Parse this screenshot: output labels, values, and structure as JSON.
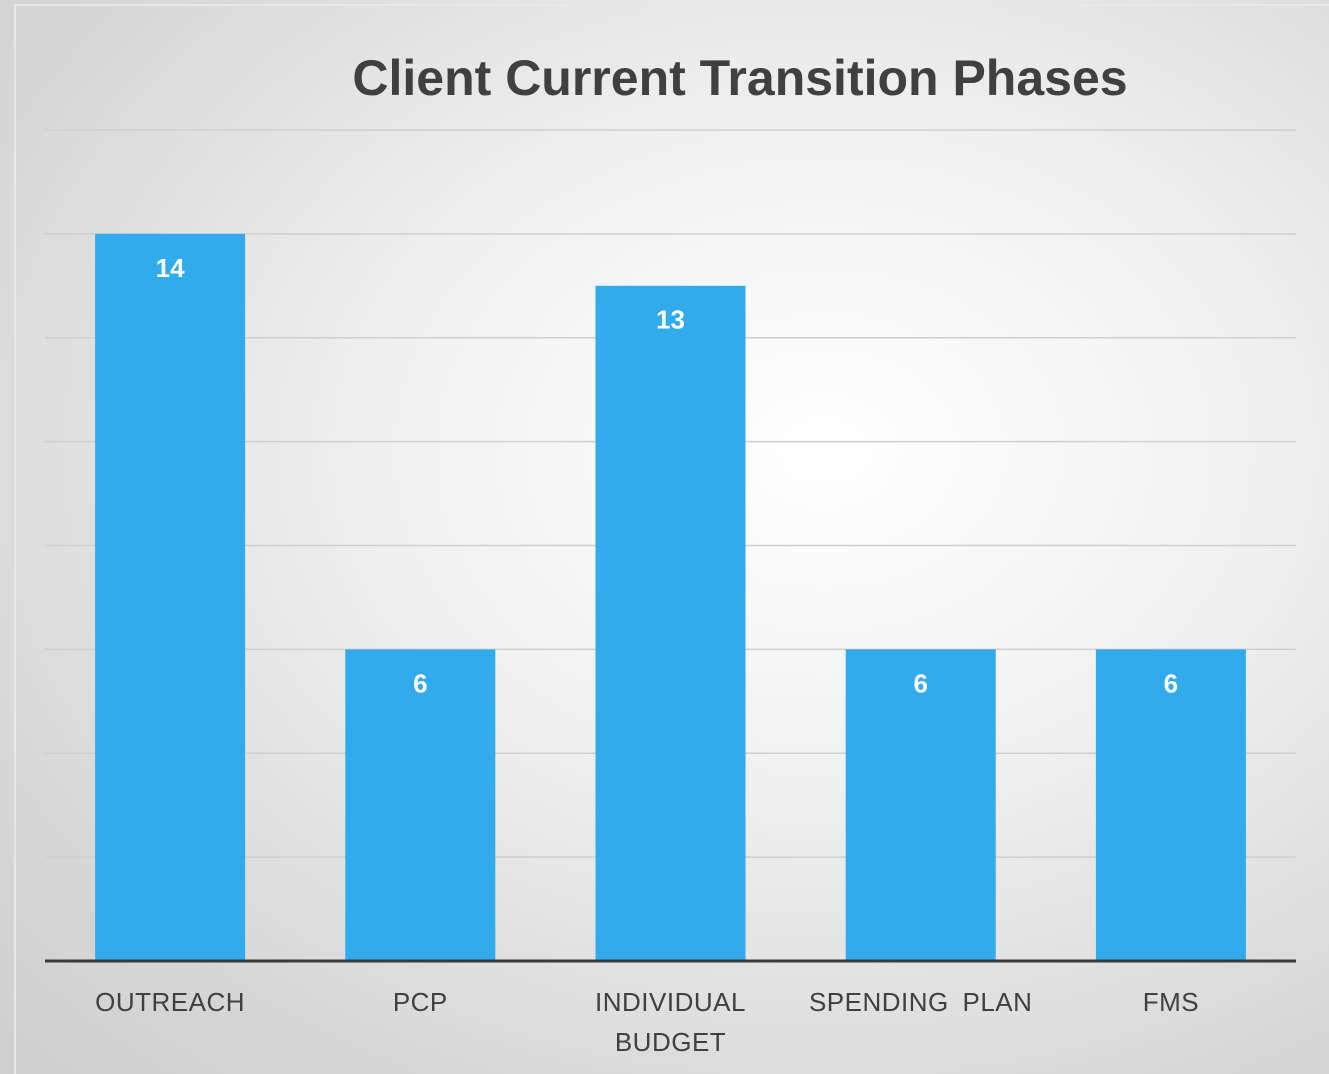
{
  "chart_data": {
    "type": "bar",
    "title": "Client Current Transition Phases",
    "categories": [
      "OUTREACH",
      "PCP",
      "INDIVIDUAL BUDGET",
      "SPENDING PLAN",
      "FMS"
    ],
    "values": [
      14,
      6,
      13,
      6,
      6
    ],
    "color": "#31abeb",
    "ylim": [
      0,
      16
    ],
    "yticks": [
      0,
      2,
      4,
      6,
      8,
      10,
      12,
      14,
      16
    ],
    "grid": true
  }
}
